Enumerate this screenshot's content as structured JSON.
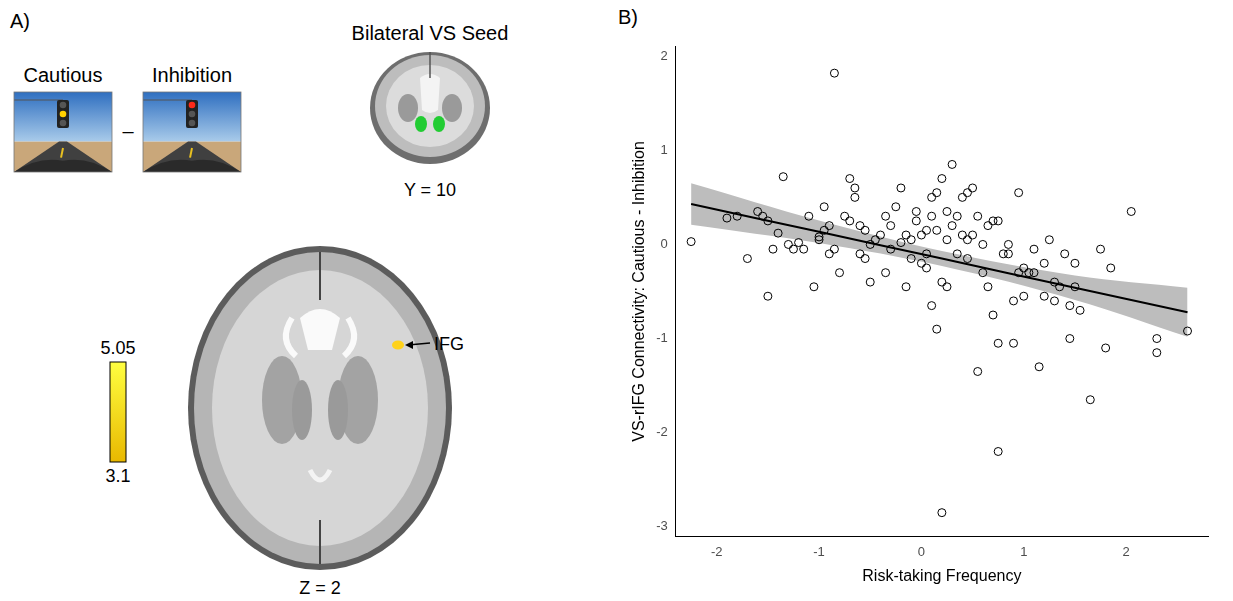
{
  "panel_a": {
    "label": "A)",
    "contrast": {
      "left": "Cautious",
      "operator": "–",
      "right": "Inhibition"
    },
    "seed": {
      "title": "Bilateral VS Seed",
      "slice": "Y = 10",
      "color": "#22cc33"
    },
    "result": {
      "region": "IFG",
      "slice": "Z = 2",
      "color": "#ffd21a"
    },
    "colorbar": {
      "range": [
        3.1,
        5.05
      ],
      "colors": [
        "#e8b800",
        "#ffff40"
      ]
    }
  },
  "panel_b": {
    "label": "B)"
  },
  "chart_data": {
    "type": "scatter",
    "x_label": "Risk-taking Frequency",
    "y_label": "VS-rIFG Connectivity: Cautious - Inhibition",
    "xlim": [
      -2.4,
      2.8
    ],
    "xticks": [
      -2,
      -1,
      0,
      1,
      2
    ],
    "ylim": [
      -3.1,
      2.1
    ],
    "yticks": [
      -3,
      -2,
      -1,
      0,
      1,
      2
    ],
    "grid": false,
    "marker": "circle",
    "color": "#000000",
    "x": [
      -2.25,
      -1.9,
      -1.8,
      -1.7,
      -1.6,
      -1.55,
      -1.5,
      -1.5,
      -1.45,
      -1.4,
      -1.35,
      -1.3,
      -1.25,
      -1.2,
      -1.15,
      -1.1,
      -1.05,
      -1.0,
      -1.0,
      -0.95,
      -0.95,
      -0.9,
      -0.9,
      -0.85,
      -0.85,
      -0.8,
      -0.75,
      -0.7,
      -0.7,
      -0.65,
      -0.65,
      -0.6,
      -0.6,
      -0.55,
      -0.55,
      -0.5,
      -0.5,
      -0.45,
      -0.4,
      -0.35,
      -0.35,
      -0.3,
      -0.3,
      -0.25,
      -0.2,
      -0.2,
      -0.15,
      -0.15,
      -0.1,
      -0.1,
      -0.05,
      -0.05,
      0.0,
      0.0,
      0.05,
      0.05,
      0.05,
      0.1,
      0.1,
      0.1,
      0.15,
      0.15,
      0.15,
      0.2,
      0.2,
      0.2,
      0.25,
      0.25,
      0.25,
      0.3,
      0.3,
      0.35,
      0.35,
      0.4,
      0.4,
      0.45,
      0.45,
      0.45,
      0.5,
      0.5,
      0.55,
      0.55,
      0.6,
      0.6,
      0.65,
      0.65,
      0.7,
      0.7,
      0.75,
      0.75,
      0.75,
      0.8,
      0.85,
      0.85,
      0.9,
      0.9,
      0.95,
      0.95,
      1.0,
      1.0,
      1.05,
      1.1,
      1.1,
      1.15,
      1.2,
      1.2,
      1.25,
      1.3,
      1.3,
      1.35,
      1.4,
      1.45,
      1.45,
      1.5,
      1.5,
      1.55,
      1.65,
      1.75,
      1.8,
      1.85,
      2.05,
      2.3,
      2.3,
      2.6
    ],
    "values": [
      0.03,
      0.28,
      0.3,
      -0.15,
      0.35,
      0.3,
      -0.55,
      0.25,
      -0.05,
      0.12,
      0.72,
      0.0,
      -0.05,
      0.02,
      -0.05,
      0.3,
      -0.45,
      0.05,
      0.08,
      0.4,
      0.15,
      -0.1,
      0.2,
      1.82,
      -0.05,
      -0.3,
      0.3,
      0.25,
      0.7,
      0.5,
      0.6,
      0.2,
      -0.1,
      0.15,
      -0.15,
      -0.4,
      0.0,
      0.05,
      0.1,
      0.3,
      -0.3,
      -0.05,
      0.2,
      0.4,
      0.6,
      0.02,
      0.1,
      -0.45,
      0.05,
      -0.15,
      0.35,
      0.25,
      -0.2,
      0.1,
      -0.25,
      0.15,
      -0.1,
      -0.65,
      0.5,
      0.3,
      0.55,
      -0.9,
      0.15,
      -2.85,
      -0.4,
      0.7,
      0.05,
      -0.45,
      0.35,
      0.2,
      0.85,
      -0.1,
      0.3,
      0.5,
      0.1,
      0.05,
      0.55,
      -0.15,
      0.6,
      0.1,
      -1.35,
      0.3,
      -0.3,
      0.0,
      -0.45,
      0.2,
      -0.75,
      0.25,
      0.25,
      -2.2,
      -1.05,
      -0.1,
      -0.1,
      0.0,
      -0.6,
      -1.05,
      -0.3,
      0.55,
      -0.25,
      -0.55,
      -0.3,
      -0.3,
      -0.05,
      -1.3,
      -0.2,
      -0.55,
      0.05,
      -0.6,
      -0.4,
      -0.45,
      -0.1,
      -1.0,
      -0.65,
      -0.45,
      -0.2,
      -0.7,
      -1.65,
      -0.05,
      -1.1,
      -0.25,
      0.35,
      -1.0,
      -1.15,
      -0.92
    ],
    "fit": {
      "x": [
        -2.25,
        -1.0,
        0.2,
        1.5,
        2.6
      ],
      "values": [
        0.43,
        0.134,
        -0.15,
        -0.46,
        -0.72
      ],
      "lower": [
        0.21,
        0.014,
        -0.23,
        -0.59,
        -0.98
      ],
      "upper": [
        0.65,
        0.254,
        -0.07,
        -0.33,
        -0.46
      ],
      "color": "#000000",
      "band_color": "#bdbdbd"
    }
  }
}
